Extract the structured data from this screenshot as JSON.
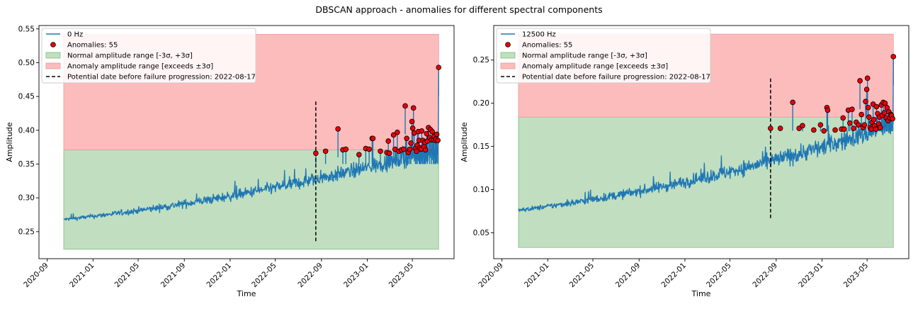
{
  "figure": {
    "title": "DBSCAN approach - anomalies for different spectral components"
  },
  "chart_data": [
    {
      "type": "line",
      "series_name": "0 Hz",
      "xlabel": "Time",
      "ylabel": "Amplitude",
      "x_range": [
        "2020-10-15",
        "2023-07-10"
      ],
      "xlim": [
        "2020-08-10",
        "2023-08-20"
      ],
      "ylim": [
        0.21,
        0.555
      ],
      "x_ticks": [
        "2020-09",
        "2021-01",
        "2021-05",
        "2021-09",
        "2022-01",
        "2022-05",
        "2022-09",
        "2023-01",
        "2023-05"
      ],
      "y_ticks": [
        0.25,
        0.3,
        0.35,
        0.4,
        0.45,
        0.5,
        0.55
      ],
      "y_tick_labels": [
        "0.25",
        "0.30",
        "0.35",
        "0.40",
        "0.45",
        "0.50",
        "0.55"
      ],
      "signal_start": 0.268,
      "signal_end": 0.372,
      "signal_final_spike": 0.493,
      "normal_band": {
        "label": "Normal amplitude range [-3σ, +3σ]",
        "low": 0.224,
        "high": 0.371,
        "color": "#c1dfc0"
      },
      "anomaly_band": {
        "label": "Anomaly amplitude range [exceeds ±3σ]",
        "low": 0.371,
        "high": 0.542,
        "color": "#fdbcbc"
      },
      "vline": {
        "label": "Potential date before failure progression: 2022-08-17",
        "date": "2022-08-17",
        "ymin": 0.236,
        "ymax": 0.444
      },
      "anomalies_label": "Anomalies: 55",
      "anomalies": [
        [
          "2022-08-17",
          0.366
        ],
        [
          "2022-09-12",
          0.369
        ],
        [
          "2022-10-15",
          0.402
        ],
        [
          "2022-10-28",
          0.371
        ],
        [
          "2022-11-05",
          0.372
        ],
        [
          "2022-12-10",
          0.364
        ],
        [
          "2022-12-28",
          0.373
        ],
        [
          "2023-01-06",
          0.372
        ],
        [
          "2023-01-14",
          0.388
        ],
        [
          "2023-01-16",
          0.388
        ],
        [
          "2023-02-05",
          0.369
        ],
        [
          "2023-02-22",
          0.367
        ],
        [
          "2023-02-26",
          0.384
        ],
        [
          "2023-03-01",
          0.366
        ],
        [
          "2023-03-12",
          0.393
        ],
        [
          "2023-03-16",
          0.372
        ],
        [
          "2023-03-22",
          0.397
        ],
        [
          "2023-03-26",
          0.369
        ],
        [
          "2023-04-02",
          0.371
        ],
        [
          "2023-04-08",
          0.372
        ],
        [
          "2023-04-12",
          0.436
        ],
        [
          "2023-04-16",
          0.388
        ],
        [
          "2023-04-20",
          0.367
        ],
        [
          "2023-04-24",
          0.372
        ],
        [
          "2023-04-27",
          0.381
        ],
        [
          "2023-04-30",
          0.413
        ],
        [
          "2023-05-02",
          0.403
        ],
        [
          "2023-05-04",
          0.433
        ],
        [
          "2023-05-06",
          0.396
        ],
        [
          "2023-05-09",
          0.373
        ],
        [
          "2023-05-12",
          0.369
        ],
        [
          "2023-05-14",
          0.378
        ],
        [
          "2023-05-17",
          0.398
        ],
        [
          "2023-05-19",
          0.385
        ],
        [
          "2023-05-21",
          0.374
        ],
        [
          "2023-05-24",
          0.372
        ],
        [
          "2023-05-26",
          0.399
        ],
        [
          "2023-05-29",
          0.385
        ],
        [
          "2023-06-01",
          0.376
        ],
        [
          "2023-06-03",
          0.382
        ],
        [
          "2023-06-05",
          0.371
        ],
        [
          "2023-06-08",
          0.395
        ],
        [
          "2023-06-10",
          0.384
        ],
        [
          "2023-06-13",
          0.404
        ],
        [
          "2023-06-16",
          0.389
        ],
        [
          "2023-06-18",
          0.401
        ],
        [
          "2023-06-21",
          0.386
        ],
        [
          "2023-06-23",
          0.398
        ],
        [
          "2023-06-26",
          0.386
        ],
        [
          "2023-06-28",
          0.391
        ],
        [
          "2023-07-01",
          0.385
        ],
        [
          "2023-07-03",
          0.387
        ],
        [
          "2023-07-05",
          0.394
        ],
        [
          "2023-07-08",
          0.385
        ],
        [
          "2023-07-10",
          0.493
        ]
      ]
    },
    {
      "type": "line",
      "series_name": "12500 Hz",
      "xlabel": "Time",
      "ylabel": "Amplitude",
      "x_range": [
        "2020-10-15",
        "2023-07-10"
      ],
      "xlim": [
        "2020-08-10",
        "2023-08-20"
      ],
      "ylim": [
        0.02,
        0.29
      ],
      "x_ticks": [
        "2020-09",
        "2021-01",
        "2021-05",
        "2021-09",
        "2022-01",
        "2022-05",
        "2022-09",
        "2023-01",
        "2023-05"
      ],
      "y_ticks": [
        0.05,
        0.1,
        0.15,
        0.2,
        0.25
      ],
      "y_tick_labels": [
        "0.05",
        "0.10",
        "0.15",
        "0.20",
        "0.25"
      ],
      "signal_start": 0.076,
      "signal_end": 0.175,
      "signal_final_spike": 0.254,
      "normal_band": {
        "label": "Normal amplitude range [-3σ, +3σ]",
        "low": 0.033,
        "high": 0.184,
        "color": "#c1dfc0"
      },
      "anomaly_band": {
        "label": "Anomaly amplitude range [exceeds ±3σ]",
        "low": 0.184,
        "high": 0.28,
        "color": "#fdbcbc"
      },
      "vline": {
        "label": "Potential date before failure progression: 2022-08-17",
        "date": "2022-08-17",
        "ymin": 0.067,
        "ymax": 0.229
      },
      "anomalies_label": "Anomalies: 55",
      "anomalies": [
        [
          "2022-08-17",
          0.171
        ],
        [
          "2022-09-12",
          0.171
        ],
        [
          "2022-10-15",
          0.201
        ],
        [
          "2022-11-01",
          0.171
        ],
        [
          "2022-11-10",
          0.174
        ],
        [
          "2022-12-10",
          0.169
        ],
        [
          "2022-12-28",
          0.175
        ],
        [
          "2023-01-06",
          0.168
        ],
        [
          "2023-01-14",
          0.195
        ],
        [
          "2023-01-16",
          0.192
        ],
        [
          "2023-02-05",
          0.169
        ],
        [
          "2023-02-22",
          0.17
        ],
        [
          "2023-02-26",
          0.183
        ],
        [
          "2023-03-01",
          0.17
        ],
        [
          "2023-03-12",
          0.192
        ],
        [
          "2023-03-16",
          0.177
        ],
        [
          "2023-03-22",
          0.193
        ],
        [
          "2023-03-26",
          0.171
        ],
        [
          "2023-04-02",
          0.178
        ],
        [
          "2023-04-08",
          0.175
        ],
        [
          "2023-04-12",
          0.226
        ],
        [
          "2023-04-16",
          0.187
        ],
        [
          "2023-04-20",
          0.172
        ],
        [
          "2023-04-24",
          0.175
        ],
        [
          "2023-04-27",
          0.202
        ],
        [
          "2023-04-30",
          0.216
        ],
        [
          "2023-05-02",
          0.229
        ],
        [
          "2023-05-04",
          0.195
        ],
        [
          "2023-05-06",
          0.184
        ],
        [
          "2023-05-09",
          0.172
        ],
        [
          "2023-05-12",
          0.17
        ],
        [
          "2023-05-14",
          0.178
        ],
        [
          "2023-05-17",
          0.199
        ],
        [
          "2023-05-19",
          0.181
        ],
        [
          "2023-05-21",
          0.174
        ],
        [
          "2023-05-24",
          0.17
        ],
        [
          "2023-05-26",
          0.196
        ],
        [
          "2023-05-29",
          0.188
        ],
        [
          "2023-06-01",
          0.176
        ],
        [
          "2023-06-03",
          0.184
        ],
        [
          "2023-06-05",
          0.172
        ],
        [
          "2023-06-08",
          0.198
        ],
        [
          "2023-06-10",
          0.186
        ],
        [
          "2023-06-13",
          0.201
        ],
        [
          "2023-06-16",
          0.189
        ],
        [
          "2023-06-18",
          0.2
        ],
        [
          "2023-06-21",
          0.183
        ],
        [
          "2023-06-23",
          0.195
        ],
        [
          "2023-06-26",
          0.18
        ],
        [
          "2023-06-28",
          0.19
        ],
        [
          "2023-07-01",
          0.183
        ],
        [
          "2023-07-03",
          0.187
        ],
        [
          "2023-07-05",
          0.186
        ],
        [
          "2023-07-08",
          0.182
        ],
        [
          "2023-07-10",
          0.254
        ]
      ]
    }
  ],
  "colors": {
    "line": "#1f77b4",
    "anomaly_fill": "#e8000b",
    "anomaly_edge": "#000000",
    "vline": "#000000"
  }
}
